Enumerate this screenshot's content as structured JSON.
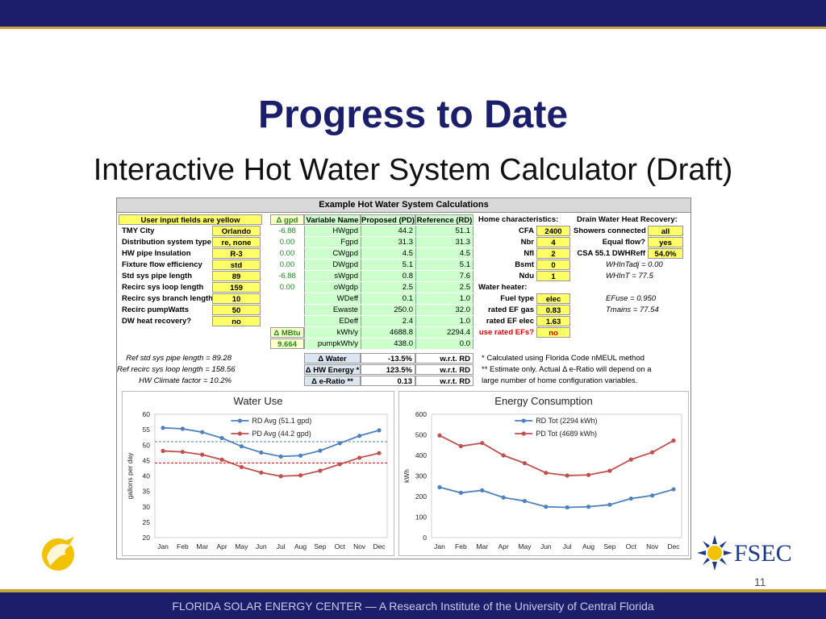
{
  "slide": {
    "title": "Progress to Date",
    "subtitle": "Interactive Hot Water System Calculator (Draft)",
    "footer": "FLORIDA SOLAR ENERGY CENTER — A Research Institute of the University of Central Florida",
    "page_number": "11",
    "fsec_logo": "FSEC"
  },
  "sheet": {
    "title": "Example Hot Water System Calculations",
    "input_header": "User input fields are yellow",
    "inputs": [
      {
        "label": "TMY City",
        "value": "Orlando",
        "delta": ""
      },
      {
        "label": "Distribution system type",
        "value": "re, none",
        "delta": "0.00"
      },
      {
        "label": "HW pipe Insulation",
        "value": "R-3",
        "delta": "0.00"
      },
      {
        "label": "Fixture flow efficiency",
        "value": "std",
        "delta": "0.00"
      },
      {
        "label": "Std sys pipe length",
        "value": "89",
        "delta": "-6.88"
      },
      {
        "label": "Recirc sys loop length",
        "value": "159",
        "delta": "0.00"
      },
      {
        "label": "Recirc sys branch length",
        "value": "10",
        "delta": ""
      },
      {
        "label": "Recirc pumpWatts",
        "value": "50",
        "delta": ""
      },
      {
        "label": "DW heat recovery?",
        "value": "no",
        "delta": ""
      }
    ],
    "delta_gpd_header": "Δ gpd",
    "delta_gpd_first": "-6.88",
    "var_header": "Variable Name",
    "pd_header": "Proposed (PD)",
    "rd_header": "Reference (RD)",
    "vars": [
      {
        "name": "HWgpd",
        "pd": "44.2",
        "rd": "51.1"
      },
      {
        "name": "Fgpd",
        "pd": "31.3",
        "rd": "31.3"
      },
      {
        "name": "CWgpd",
        "pd": "4.5",
        "rd": "4.5"
      },
      {
        "name": "DWgpd",
        "pd": "5.1",
        "rd": "5.1"
      },
      {
        "name": "sWgpd",
        "pd": "0.8",
        "rd": "7.6"
      },
      {
        "name": "oWgdp",
        "pd": "2.5",
        "rd": "2.5"
      },
      {
        "name": "WDeff",
        "pd": "0.1",
        "rd": "1.0"
      },
      {
        "name": "Ewaste",
        "pd": "250.0",
        "rd": "32.0"
      },
      {
        "name": "EDeff",
        "pd": "2.4",
        "rd": "1.0"
      },
      {
        "name": "kWh/y",
        "pd": "4688.8",
        "rd": "2294.4"
      },
      {
        "name": "pumpkWh/y",
        "pd": "438.0",
        "rd": "0.0"
      }
    ],
    "delta_mbtu_label": "Δ MBtu",
    "delta_mbtu_value": "9.664",
    "results": [
      {
        "label": "Δ Water",
        "value": "-13.5%",
        "ref": "w.r.t. RD"
      },
      {
        "label": "Δ HW Energy *",
        "value": "123.5%",
        "ref": "w.r.t. RD"
      },
      {
        "label": "Δ e-Ratio **",
        "value": "0.13",
        "ref": "w.r.t. RD"
      }
    ],
    "ref_notes": [
      "Ref std sys pipe length = 89.28",
      "Ref recirc sys loop length = 158.56",
      "HW Climate factor = 10.2%"
    ],
    "home_header": "Home characteristics:",
    "home": [
      {
        "label": "CFA",
        "value": "2400"
      },
      {
        "label": "Nbr",
        "value": "4"
      },
      {
        "label": "Nfl",
        "value": "2"
      },
      {
        "label": "Bsmt",
        "value": "0"
      },
      {
        "label": "Ndu",
        "value": "1"
      }
    ],
    "water_heater_header": "Water heater:",
    "water_heater": [
      {
        "label": "Fuel type",
        "value": "elec"
      },
      {
        "label": "rated EF gas",
        "value": "0.83"
      },
      {
        "label": "rated EF elec",
        "value": "1.63"
      }
    ],
    "use_rated_label": "use rated EFs?",
    "use_rated_value": "no",
    "dwhr_header": "Drain Water Heat Recovery:",
    "dwhr": [
      {
        "label": "Showers connected",
        "value": "all"
      },
      {
        "label": "Equal flow?",
        "value": "yes"
      },
      {
        "label": "CSA 55.1 DWHReff",
        "value": "54.0%"
      }
    ],
    "dwhr_notes": [
      "WHInTadj = 0.00",
      "WHInT = 77.5",
      "EFuse = 0.950",
      "Tmains = 77.54"
    ],
    "footnotes": [
      "* Calculated using Florida Code nMEUL method",
      "** Estimate only. Actual Δ e-Ratio will depend on a",
      "large number of home configuration variables."
    ]
  },
  "chart_data": [
    {
      "type": "line",
      "title": "Water Use",
      "ylabel": "gallons per day",
      "xlabel": "",
      "ylim": [
        20,
        60
      ],
      "yticks": [
        20,
        25,
        30,
        35,
        40,
        45,
        50,
        55,
        60
      ],
      "categories": [
        "Jan",
        "Feb",
        "Mar",
        "Apr",
        "May",
        "Jun",
        "Jul",
        "Aug",
        "Sep",
        "Oct",
        "Nov",
        "Dec"
      ],
      "series": [
        {
          "name": "RD Avg (51.1 gpd)",
          "color": "#4f81bd",
          "values": [
            55.6,
            55.3,
            54.2,
            52.3,
            49.6,
            47.6,
            46.3,
            46.6,
            48.2,
            50.6,
            53.0,
            54.8
          ]
        },
        {
          "name": "PD Avg (44.2 gpd)",
          "color": "#c0504d",
          "values": [
            48.1,
            47.8,
            46.9,
            45.3,
            42.9,
            41.1,
            39.9,
            40.2,
            41.7,
            43.8,
            45.9,
            47.4
          ]
        }
      ],
      "ref_lines": [
        {
          "value": 51.1,
          "color": "#4f81bd"
        },
        {
          "value": 44.2,
          "color": "#e00000"
        }
      ]
    },
    {
      "type": "line",
      "title": "Energy Consumption",
      "ylabel": "kWh",
      "xlabel": "",
      "ylim": [
        0,
        600
      ],
      "yticks": [
        0,
        100,
        200,
        300,
        400,
        500,
        600
      ],
      "categories": [
        "Jan",
        "Feb",
        "Mar",
        "Apr",
        "May",
        "Jun",
        "Jul",
        "Aug",
        "Sep",
        "Oct",
        "Nov",
        "Dec"
      ],
      "series": [
        {
          "name": "RD Tot (2294 kWh)",
          "color": "#4f81bd",
          "values": [
            245,
            218,
            230,
            195,
            178,
            150,
            147,
            150,
            160,
            190,
            205,
            235
          ]
        },
        {
          "name": "PD Tot (4689 kWh)",
          "color": "#c0504d",
          "values": [
            497,
            445,
            460,
            400,
            362,
            315,
            302,
            305,
            325,
            380,
            415,
            472
          ]
        }
      ]
    }
  ]
}
